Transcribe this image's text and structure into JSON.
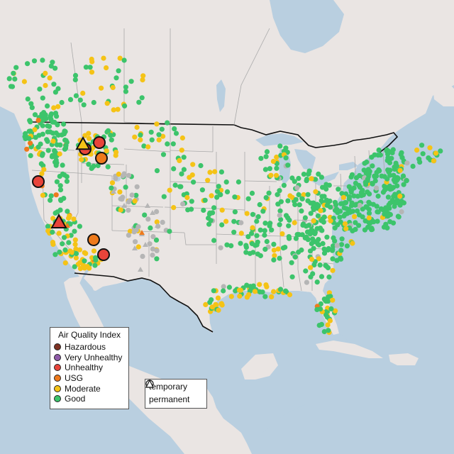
{
  "map": {
    "legend_title": "Air Quality Index",
    "categories": [
      {
        "label": "Hazardous",
        "color": "#7e3223"
      },
      {
        "label": "Very Unhealthy",
        "color": "#8f5aa8"
      },
      {
        "label": "Unhealthy",
        "color": "#e8443a"
      },
      {
        "label": "USG",
        "color": "#ee7a1c"
      },
      {
        "label": "Moderate",
        "color": "#f5c316"
      },
      {
        "label": "Good",
        "color": "#3cc46b"
      }
    ],
    "monitor_types": [
      {
        "label": "temporary",
        "symbol": "circle"
      },
      {
        "label": "permanent",
        "symbol": "triangle"
      }
    ],
    "no_data_color": "#b5b5b5",
    "land_color": "#eae5e3",
    "water_color": "#b9cfe0"
  }
}
